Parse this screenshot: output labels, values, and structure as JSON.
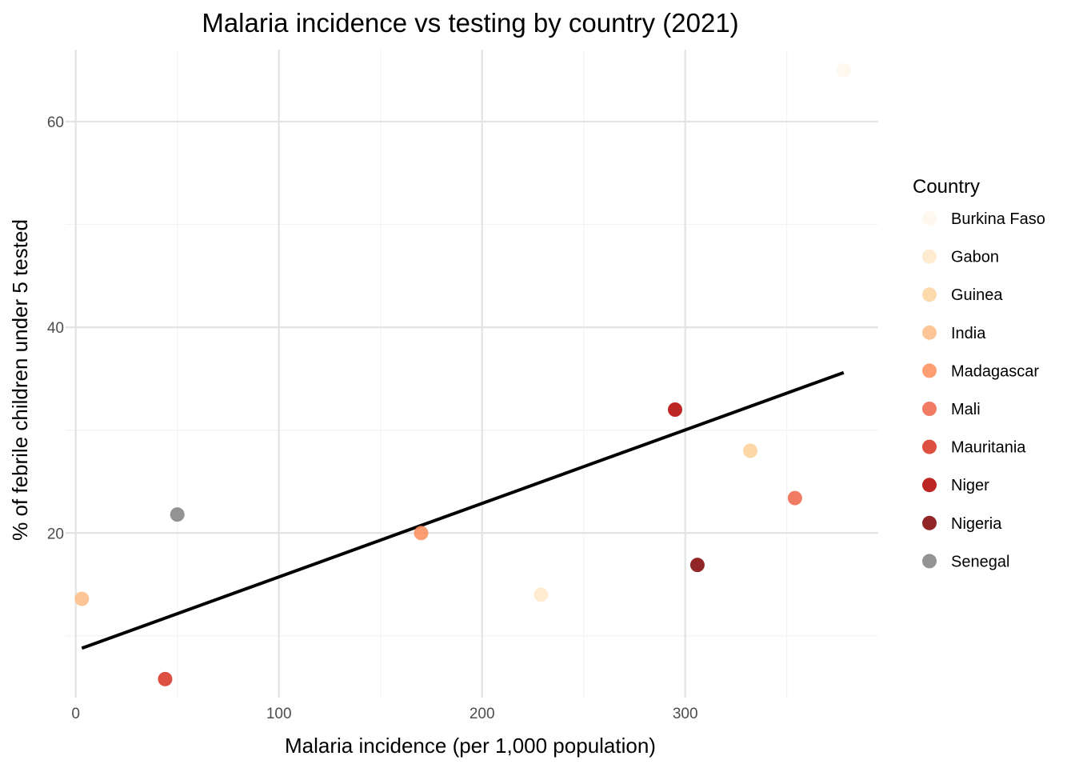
{
  "chart_data": {
    "type": "scatter",
    "title": "Malaria incidence vs testing by country (2021)",
    "xlabel": "Malaria incidence (per 1,000 population)",
    "ylabel": "% of febrile children under 5 tested",
    "xlim": [
      -5,
      395
    ],
    "ylim": [
      4,
      67
    ],
    "x_ticks": [
      0,
      100,
      200,
      300
    ],
    "y_ticks": [
      20,
      40,
      60
    ],
    "x_ticks_labels": [
      "0",
      "100",
      "200",
      "300"
    ],
    "y_ticks_labels": [
      "20",
      "40",
      "60"
    ],
    "grid": true,
    "legend": {
      "title": "Country",
      "position": "right"
    },
    "series": [
      {
        "name": "Burkina Faso",
        "color": "#fff7ec",
        "x": [
          378
        ],
        "y": [
          65
        ]
      },
      {
        "name": "Gabon",
        "color": "#fee8c8",
        "x": [
          229,
          332
        ],
        "y": [
          14,
          28
        ]
      },
      {
        "name": "Guinea",
        "color": "#fdd49e",
        "x": [
          332
        ],
        "y": [
          28
        ]
      },
      {
        "name": "India",
        "color": "#fdbb84",
        "x": [
          3
        ],
        "y": [
          13.6
        ]
      },
      {
        "name": "Madagascar",
        "color": "#fc8d59",
        "x": [
          170
        ],
        "y": [
          20
        ]
      },
      {
        "name": "Mali",
        "color": "#ef6548",
        "x": [
          354
        ],
        "y": [
          23.4
        ]
      },
      {
        "name": "Mauritania",
        "color": "#d7301f",
        "x": [
          44
        ],
        "y": [
          5.8
        ]
      },
      {
        "name": "Niger",
        "color": "#b30000",
        "x": [
          295
        ],
        "y": [
          32
        ]
      },
      {
        "name": "Nigeria",
        "color": "#7f0000",
        "x": [
          306
        ],
        "y": [
          16.9
        ]
      },
      {
        "name": "Senegal",
        "color": "#808080",
        "x": [
          50
        ],
        "y": [
          21.8
        ]
      }
    ],
    "trendline": {
      "x": [
        3,
        378
      ],
      "y": [
        8.8,
        35.6
      ],
      "color": "#000000"
    }
  }
}
